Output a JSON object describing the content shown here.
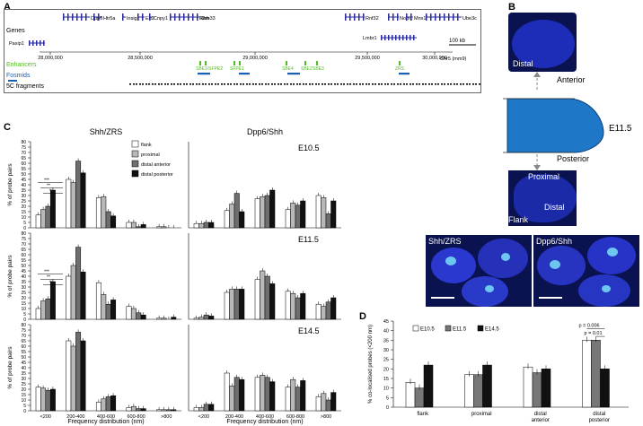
{
  "panels": {
    "A": "A",
    "B": "B",
    "C": "C",
    "D": "D"
  },
  "panelA": {
    "genes_label": "Genes",
    "genes_top": [
      "Dpp6",
      "Htr5a",
      "Insig1",
      "En2",
      "Cnpy1",
      "Rbm33",
      "Shh",
      "Rnf32",
      "Nom1",
      "Mnx1",
      "Ube3c"
    ],
    "genes_row2": [
      "Paxip1",
      "Lmbr1"
    ],
    "scale_bar": "100 kb",
    "coords": [
      "28,000,000",
      "28,500,000",
      "29,000,000",
      "29,500,000",
      "30,000,000"
    ],
    "chrom": "Chr5 (mm9)",
    "enhancers_label": "Enhancers",
    "enhancers": [
      "SBE1/SFPE2",
      "SFPE1",
      "SBE4",
      "SBE2",
      "SBE3",
      "ZRS"
    ],
    "fosmids_label": "Fosmids",
    "fragments_label": "5C fragments"
  },
  "panelB": {
    "distal_label": "Distal",
    "anterior": "Anterior",
    "stage": "E11.5",
    "posterior": "Posterior",
    "proximal": "Proximal",
    "distal2": "Distal",
    "flank": "Flank",
    "img1": "Shh/ZRS",
    "img2": "Dpp6/Shh"
  },
  "colors": {
    "flank": "#ffffff",
    "proximal": "#b8b8b8",
    "distal_anterior": "#6e6e6e",
    "distal_posterior": "#111111",
    "gene": "#2a2a9a",
    "enhancer": "#55bb22",
    "fosmid": "#1a5fb4",
    "limb": "#1f77c8"
  },
  "panelC": {
    "left_title": "Shh/ZRS",
    "right_title": "Dpp6/Shh",
    "ylabel": "% of probe pairs",
    "xlabel": "Frequency distribution (nm)",
    "legend": [
      "flank",
      "proximal",
      "distal anterior",
      "distal posterior"
    ],
    "sig": [
      "***",
      "**",
      "*"
    ],
    "chart_data": {
      "type": "bar",
      "categories": [
        "<200",
        "200-400",
        "400-600",
        "600-800",
        ">800"
      ],
      "yticks": [
        0,
        5,
        10,
        15,
        20,
        25,
        30,
        35,
        40,
        45,
        50,
        55,
        60,
        65,
        70,
        75,
        80
      ],
      "ylim": [
        0,
        80
      ],
      "series_names": [
        "flank",
        "proximal",
        "distal anterior",
        "distal posterior"
      ],
      "rows": [
        {
          "stage": "E10.5",
          "left": [
            [
              12,
              17,
              20,
              35
            ],
            [
              45,
              42,
              62,
              51
            ],
            [
              28,
              29,
              15,
              11
            ],
            [
              5,
              5,
              1,
              3
            ],
            [
              1,
              1,
              0,
              0
            ]
          ],
          "right": [
            [
              4,
              4,
              5,
              5
            ],
            [
              16,
              22,
              32,
              15
            ],
            [
              27,
              29,
              30,
              35
            ],
            [
              17,
              23,
              21,
              25
            ],
            [
              30,
              28,
              13,
              25
            ]
          ]
        },
        {
          "stage": "E11.5",
          "left": [
            [
              10,
              17,
              19,
              35
            ],
            [
              40,
              50,
              67,
              44
            ],
            [
              34,
              23,
              14,
              18
            ],
            [
              12,
              10,
              6,
              4
            ],
            [
              1,
              1,
              0,
              2
            ]
          ],
          "right": [
            [
              1,
              2,
              4,
              3
            ],
            [
              25,
              28,
              28,
              28
            ],
            [
              37,
              45,
              40,
              33
            ],
            [
              26,
              24,
              20,
              24
            ],
            [
              14,
              12,
              16,
              20
            ]
          ]
        },
        {
          "stage": "E14.5",
          "left": [
            [
              22,
              21,
              19,
              20
            ],
            [
              65,
              60,
              73,
              65
            ],
            [
              8,
              11,
              13,
              14
            ],
            [
              3,
              4,
              2,
              2
            ],
            [
              1,
              1,
              1,
              1
            ]
          ],
          "right": [
            [
              3,
              3,
              6,
              6
            ],
            [
              35,
              23,
              31,
              29
            ],
            [
              31,
              33,
              31,
              27
            ],
            [
              22,
              29,
              22,
              28
            ],
            [
              13,
              16,
              10,
              17
            ]
          ]
        }
      ]
    }
  },
  "panelD": {
    "ylabel": "% co-localised probes (<200 nm)",
    "legend": [
      "E10.5",
      "E11.5",
      "E14.5"
    ],
    "pvalues": [
      "p = 0.006",
      "p = 0.01"
    ],
    "chart_data": {
      "type": "bar",
      "categories": [
        "flank",
        "proximal",
        "distal anterior",
        "distal posterior"
      ],
      "series": [
        {
          "name": "E10.5",
          "values": [
            13,
            17,
            21,
            35
          ]
        },
        {
          "name": "E11.5",
          "values": [
            10,
            17,
            18,
            35
          ]
        },
        {
          "name": "E14.5",
          "values": [
            22,
            22,
            20,
            20
          ]
        }
      ],
      "yticks": [
        0,
        5,
        10,
        15,
        20,
        25,
        30,
        35,
        40,
        45
      ],
      "ylim": [
        0,
        45
      ]
    }
  }
}
